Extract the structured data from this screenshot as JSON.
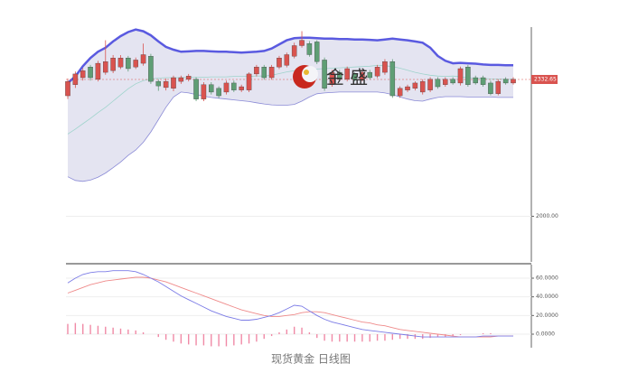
{
  "chart_data": [
    {
      "type": "candlestick",
      "open": [
        2293,
        2320,
        2337,
        2363,
        2333,
        2350,
        2354,
        2363,
        2385,
        2363,
        2372,
        2389,
        2328,
        2313,
        2311,
        2328,
        2333,
        2333,
        2285,
        2320,
        2311,
        2302,
        2324,
        2307,
        2307,
        2346,
        2363,
        2337,
        2363,
        2367,
        2389,
        2415,
        2420,
        2424,
        2380,
        2320,
        2350,
        2333,
        2346,
        2333,
        2350,
        2341,
        2350,
        2376,
        2293,
        2307,
        2311,
        2302,
        2307,
        2333,
        2320,
        2333,
        2324,
        2363,
        2337,
        2337,
        2324,
        2298,
        2333,
        2324
      ],
      "high": [
        2335,
        2352,
        2360,
        2368,
        2378,
        2428,
        2392,
        2392,
        2390,
        2386,
        2420,
        2395,
        2333,
        2335,
        2342,
        2342,
        2346,
        2338,
        2326,
        2326,
        2316,
        2330,
        2330,
        2320,
        2350,
        2368,
        2368,
        2368,
        2390,
        2398,
        2422,
        2450,
        2426,
        2428,
        2386,
        2356,
        2356,
        2364,
        2350,
        2356,
        2356,
        2368,
        2382,
        2382,
        2316,
        2320,
        2328,
        2333,
        2338,
        2338,
        2338,
        2338,
        2364,
        2368,
        2342,
        2342,
        2330,
        2333,
        2338,
        2338
      ],
      "low": [
        2285,
        2312,
        2330,
        2330,
        2328,
        2344,
        2348,
        2358,
        2352,
        2358,
        2366,
        2322,
        2305,
        2306,
        2304,
        2322,
        2328,
        2280,
        2280,
        2296,
        2287,
        2296,
        2302,
        2302,
        2302,
        2340,
        2332,
        2332,
        2358,
        2362,
        2384,
        2410,
        2388,
        2370,
        2305,
        2315,
        2328,
        2328,
        2328,
        2328,
        2332,
        2336,
        2344,
        2288,
        2288,
        2302,
        2306,
        2296,
        2302,
        2310,
        2315,
        2320,
        2318,
        2315,
        2320,
        2315,
        2294,
        2294,
        2320,
        2320
      ],
      "close": [
        2328,
        2346,
        2354,
        2337,
        2372,
        2376,
        2385,
        2385,
        2359,
        2380,
        2393,
        2328,
        2317,
        2328,
        2337,
        2337,
        2341,
        2285,
        2320,
        2302,
        2293,
        2324,
        2307,
        2315,
        2346,
        2363,
        2337,
        2363,
        2385,
        2393,
        2415,
        2428,
        2393,
        2376,
        2311,
        2350,
        2333,
        2359,
        2333,
        2350,
        2337,
        2363,
        2376,
        2293,
        2311,
        2315,
        2324,
        2328,
        2333,
        2315,
        2333,
        2324,
        2359,
        2320,
        2324,
        2320,
        2298,
        2328,
        2324,
        2333
      ],
      "up_color": "#d9534f",
      "down_color": "#5f9e75",
      "bollinger": {
        "color": "#5a5ae0",
        "lower_color": "#8a8ad6",
        "middle_color": "#9fd4cc",
        "fill": "#e4e4f1",
        "upper": [
          2324,
          2340,
          2365,
          2385,
          2400,
          2410,
          2425,
          2438,
          2448,
          2454,
          2450,
          2440,
          2425,
          2412,
          2405,
          2400,
          2401,
          2402,
          2402,
          2401,
          2400,
          2400,
          2399,
          2398,
          2399,
          2400,
          2402,
          2408,
          2418,
          2428,
          2433,
          2434,
          2434,
          2433,
          2432,
          2432,
          2431,
          2431,
          2430,
          2430,
          2429,
          2428,
          2430,
          2432,
          2430,
          2428,
          2425,
          2422,
          2410,
          2390,
          2378,
          2372,
          2373,
          2372,
          2371,
          2369,
          2368,
          2368,
          2367,
          2367
        ],
        "middle": [
          2200,
          2212,
          2225,
          2238,
          2252,
          2265,
          2280,
          2295,
          2310,
          2322,
          2330,
          2334,
          2336,
          2337,
          2337,
          2337,
          2338,
          2338,
          2338,
          2339,
          2339,
          2339,
          2340,
          2340,
          2340,
          2341,
          2341,
          2343,
          2347,
          2351,
          2354,
          2356,
          2357,
          2358,
          2359,
          2360,
          2361,
          2362,
          2363,
          2364,
          2365,
          2367,
          2366,
          2364,
          2360,
          2355,
          2350,
          2346,
          2343,
          2341,
          2340,
          2341,
          2339,
          2337,
          2336,
          2335,
          2334,
          2334,
          2333,
          2333
        ],
        "lower": [
          2096,
          2087,
          2085,
          2088,
          2095,
          2105,
          2118,
          2132,
          2148,
          2161,
          2180,
          2205,
          2235,
          2265,
          2290,
          2302,
          2300,
          2296,
          2292,
          2289,
          2287,
          2285,
          2283,
          2281,
          2279,
          2276,
          2273,
          2271,
          2270,
          2270,
          2272,
          2280,
          2290,
          2298,
          2300,
          2301,
          2302,
          2302,
          2302,
          2302,
          2302,
          2302,
          2300,
          2296,
          2290,
          2285,
          2281,
          2280,
          2285,
          2289,
          2291,
          2291,
          2291,
          2290,
          2290,
          2290,
          2290,
          2289,
          2289,
          2289
        ]
      },
      "last_price": 2332.65,
      "last_price_color": "#d9534f",
      "ylim": [
        1889,
        2460
      ],
      "yticks": [
        {
          "value": 2000,
          "label": "2000.00"
        }
      ],
      "grid": true,
      "watermark": "金 盛"
    },
    {
      "type": "macd",
      "dif": {
        "color": "#7b7be6",
        "values": [
          55,
          60,
          64,
          66,
          67,
          67,
          68,
          68,
          68,
          67,
          64,
          60,
          56,
          51,
          46,
          41,
          37,
          33,
          29,
          25,
          22,
          19,
          17,
          15,
          15,
          16,
          18,
          20,
          23,
          27,
          31,
          30,
          25,
          20,
          16,
          13,
          11,
          9,
          7,
          5,
          4,
          3,
          2,
          1,
          0,
          -1,
          -2,
          -3,
          -3,
          -3,
          -3,
          -3,
          -3,
          -3,
          -3,
          -2,
          -2,
          -2,
          -2,
          -2
        ]
      },
      "dea": {
        "color": "#ef8a8a",
        "values": [
          44,
          47,
          50,
          53,
          55,
          57,
          58,
          59,
          60,
          61,
          61,
          60,
          58,
          56,
          53,
          50,
          47,
          44,
          41,
          38,
          35,
          32,
          29,
          26,
          24,
          22,
          20,
          19,
          19,
          20,
          21,
          23,
          24,
          24,
          23,
          21,
          19,
          17,
          15,
          13,
          12,
          10,
          9,
          7,
          5,
          4,
          3,
          2,
          1,
          0,
          -1,
          -2,
          -3,
          -3,
          -3,
          -3,
          -3,
          -2,
          -2,
          -2
        ]
      },
      "histogram": {
        "color": "#f08aa6",
        "values": [
          11,
          12,
          11,
          10,
          9,
          8,
          7,
          6,
          5,
          4,
          2,
          0,
          -3,
          -6,
          -8,
          -10,
          -11,
          -12,
          -12,
          -13,
          -13,
          -13,
          -12,
          -11,
          -10,
          -8,
          -5,
          -2,
          2,
          5,
          8,
          7,
          2,
          -4,
          -7,
          -8,
          -8,
          -8,
          -8,
          -8,
          -8,
          -7,
          -7,
          -6,
          -5,
          -5,
          -5,
          -5,
          -4,
          -3,
          -3,
          -2,
          -1,
          0,
          0,
          1,
          1,
          0,
          0,
          0
        ]
      },
      "ylim": [
        -14.5,
        74.5
      ],
      "yticks": [
        {
          "value": 0,
          "label": "0.0000"
        },
        {
          "value": 20,
          "label": "20.0000"
        },
        {
          "value": 40,
          "label": "40.0000"
        },
        {
          "value": 60,
          "label": "60.0000"
        }
      ],
      "grid": true
    }
  ],
  "caption": "现货黄金 日线图"
}
